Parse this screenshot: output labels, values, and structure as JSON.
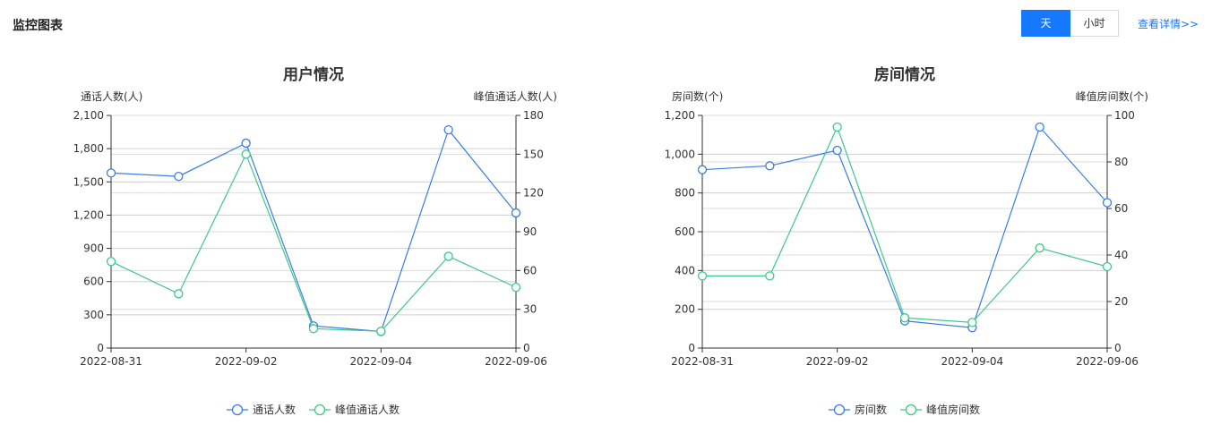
{
  "header": {
    "title": "监控图表",
    "toggle": [
      {
        "label": "天",
        "active": true
      },
      {
        "label": "小时",
        "active": false
      }
    ],
    "details_link": "查看详情>>"
  },
  "colors": {
    "primary": "#1677ff",
    "series1": "#3b7de0",
    "series2": "#3ec98a"
  },
  "chart_data": [
    {
      "type": "line",
      "title": "用户情况",
      "y_left_label": "通话人数(人)",
      "y_right_label": "峰值通话人数(人)",
      "x": [
        "2022-08-31",
        "2022-09-01",
        "2022-09-02",
        "2022-09-03",
        "2022-09-04",
        "2022-09-05",
        "2022-09-06"
      ],
      "x_tick_labels": [
        "2022-08-31",
        "2022-09-02",
        "2022-09-04",
        "2022-09-06"
      ],
      "y_left_ticks": [
        "0",
        "300",
        "600",
        "900",
        "1,200",
        "1,500",
        "1,800",
        "2,100"
      ],
      "y_right_ticks": [
        "0",
        "30",
        "60",
        "90",
        "120",
        "150",
        "180"
      ],
      "ylim_left": [
        0,
        2100
      ],
      "ylim_right": [
        0,
        180
      ],
      "grid": true,
      "legend_position": "bottom",
      "series": [
        {
          "name": "通话人数",
          "axis": "left",
          "color": "#3b7de0",
          "values": [
            1580,
            1550,
            1850,
            200,
            150,
            1970,
            1220
          ]
        },
        {
          "name": "峰值通话人数",
          "axis": "right",
          "color": "#3ec98a",
          "values": [
            67,
            42,
            150,
            15,
            13,
            71,
            47
          ]
        }
      ]
    },
    {
      "type": "line",
      "title": "房间情况",
      "y_left_label": "房间数(个)",
      "y_right_label": "峰值房间数(个)",
      "x": [
        "2022-08-31",
        "2022-09-01",
        "2022-09-02",
        "2022-09-03",
        "2022-09-04",
        "2022-09-05",
        "2022-09-06"
      ],
      "x_tick_labels": [
        "2022-08-31",
        "2022-09-02",
        "2022-09-04",
        "2022-09-06"
      ],
      "y_left_ticks": [
        "0",
        "200",
        "400",
        "600",
        "800",
        "1,000",
        "1,200"
      ],
      "y_right_ticks": [
        "0",
        "20",
        "40",
        "60",
        "80",
        "100"
      ],
      "ylim_left": [
        0,
        1200
      ],
      "ylim_right": [
        0,
        100
      ],
      "grid": true,
      "legend_position": "bottom",
      "series": [
        {
          "name": "房间数",
          "axis": "left",
          "color": "#3b7de0",
          "values": [
            920,
            940,
            1020,
            140,
            105,
            1140,
            750
          ]
        },
        {
          "name": "峰值房间数",
          "axis": "right",
          "color": "#3ec98a",
          "values": [
            31,
            31,
            95,
            13,
            11,
            43,
            35
          ]
        }
      ]
    }
  ]
}
